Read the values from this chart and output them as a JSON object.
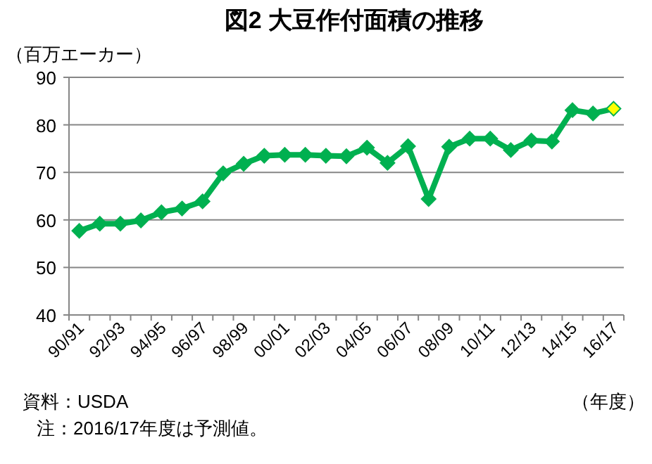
{
  "chart_data": {
    "type": "line",
    "title": "図2 大豆作付面積の推移",
    "ylabel": "（百万エーカー）",
    "xlabel": "（年度）",
    "categories": [
      "90/91",
      null,
      "92/93",
      null,
      "94/95",
      null,
      "96/97",
      null,
      "98/99",
      null,
      "00/01",
      null,
      "02/03",
      null,
      "04/05",
      null,
      "06/07",
      null,
      "08/09",
      null,
      "10/11",
      null,
      "12/13",
      null,
      "14/15",
      null,
      "16/17"
    ],
    "series": [
      {
        "color": "#00b050",
        "colors": [
          "#00b050",
          "#00b050",
          "#00b050",
          "#00b050",
          "#00b050",
          "#00b050",
          "#00b050",
          "#00b050",
          "#00b050",
          "#00b050",
          "#00b050",
          "#00b050",
          "#00b050",
          "#00b050",
          "#00b050",
          "#00b050",
          "#00b050",
          "#00b050",
          "#00b050",
          "#00b050",
          "#00b050",
          "#00b050",
          "#00b050",
          "#00b050",
          "#00b050",
          "#00b050",
          "#ffff00"
        ],
        "values": [
          57.7,
          59.2,
          59.2,
          59.9,
          61.6,
          62.4,
          63.9,
          69.8,
          71.8,
          73.5,
          73.7,
          73.7,
          73.5,
          73.4,
          75.2,
          72.0,
          75.5,
          64.4,
          75.4,
          77.1,
          77.1,
          74.7,
          76.7,
          76.5,
          83.1,
          82.4,
          83.4
        ]
      }
    ],
    "ylim": [
      40,
      90
    ],
    "yticks": [
      40,
      50,
      60,
      70,
      80,
      90
    ],
    "grid": "y",
    "marker": "diamond",
    "line_style": "solid",
    "annotations": [
      "資料：USDA",
      "注：2016/17年度は予測値。"
    ]
  }
}
